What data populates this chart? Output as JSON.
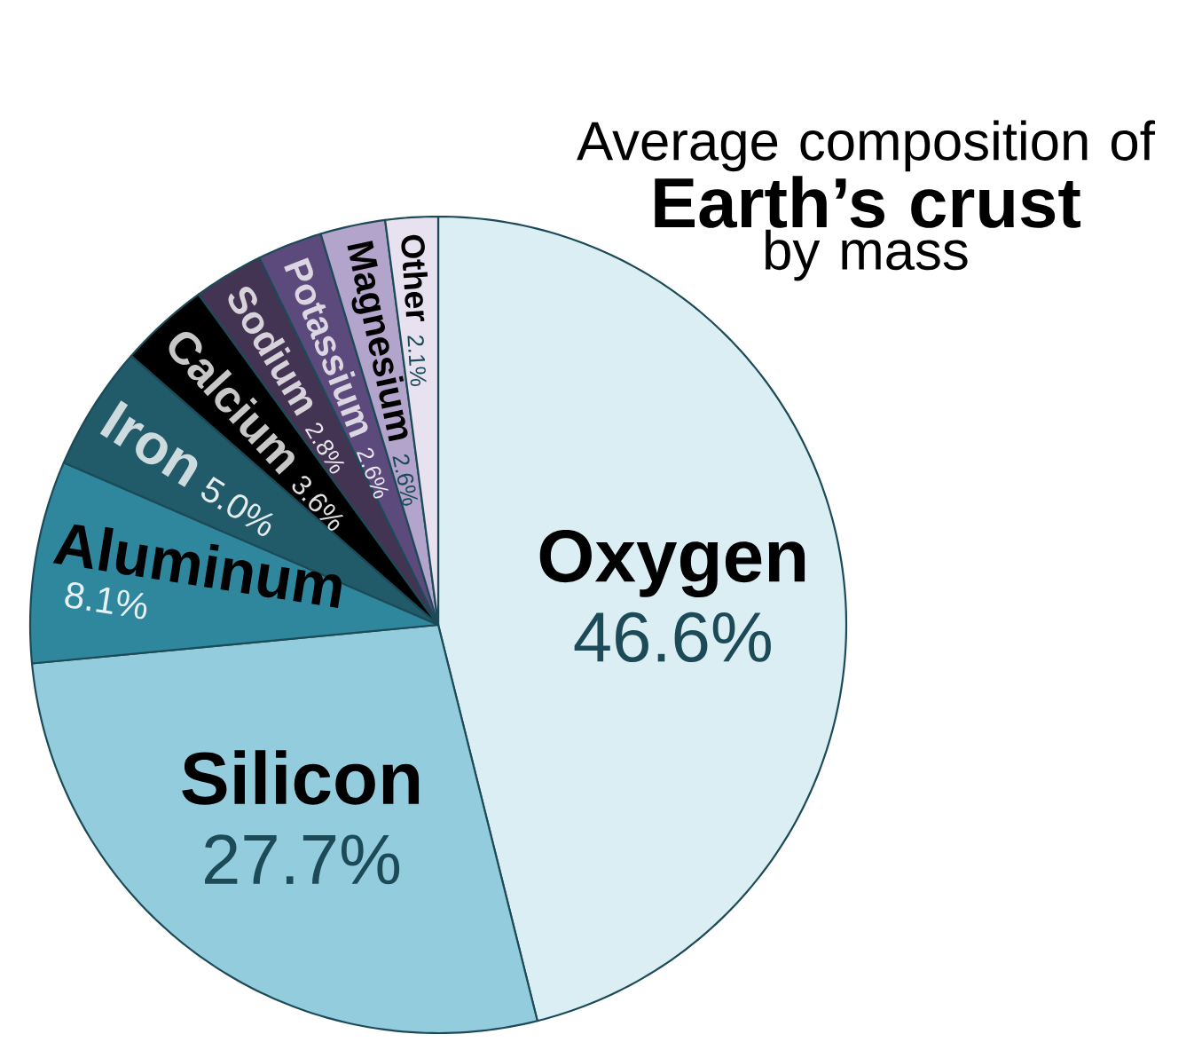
{
  "chart_data": {
    "type": "pie",
    "title": "Average composition of **Earth’s crust** by mass",
    "categories": [
      "Oxygen",
      "Silicon",
      "Aluminum",
      "Iron",
      "Calcium",
      "Sodium",
      "Potassium",
      "Magnesium",
      "Other"
    ],
    "values": [
      46.6,
      27.7,
      8.1,
      5.0,
      3.6,
      2.8,
      2.6,
      2.6,
      2.1
    ],
    "value_labels": [
      "46.6%",
      "27.7%",
      "8.1%",
      "5.0%",
      "3.6%",
      "2.8%",
      "2.6%",
      "2.6%",
      "2.1%"
    ],
    "colors": [
      "#daeef4",
      "#93cddd",
      "#2f879e",
      "#215a68",
      "#000000",
      "#433454",
      "#5c4a7c",
      "#b2a4ca",
      "#e8e2f0"
    ]
  }
}
